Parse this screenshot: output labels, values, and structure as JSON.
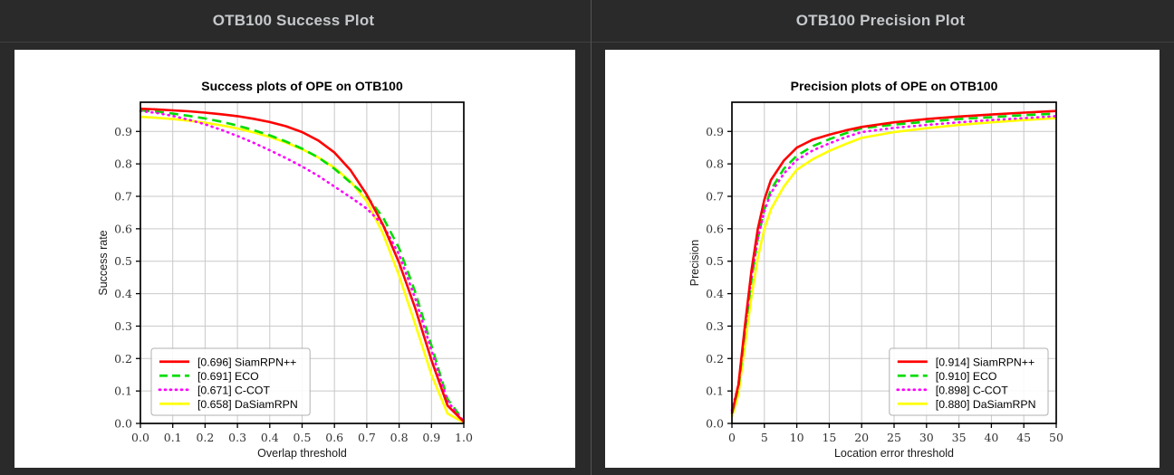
{
  "page": {
    "background": "#2a2a2a",
    "panel_background": "#ffffff",
    "divider_color": "#4a4a4a",
    "header_text_color": "#c6c9cc"
  },
  "headers": {
    "left": "OTB100 Success Plot",
    "right": "OTB100 Precision Plot"
  },
  "chart_data": [
    {
      "type": "line",
      "title": "Success plots of OPE on OTB100",
      "xlabel": "Overlap threshold",
      "ylabel": "Success rate",
      "xlim": [
        0,
        1
      ],
      "ylim": [
        0,
        0.99
      ],
      "grid": true,
      "legend_position": "lower-left",
      "xticks": [
        0,
        0.1,
        0.2,
        0.3,
        0.4,
        0.5,
        0.6,
        0.7,
        0.8,
        0.9,
        1.0
      ],
      "xtick_labels": [
        "0.0",
        "0.1",
        "0.2",
        "0.3",
        "0.4",
        "0.5",
        "0.6",
        "0.7",
        "0.8",
        "0.9",
        "1.0"
      ],
      "yticks": [
        0,
        0.1,
        0.2,
        0.3,
        0.4,
        0.5,
        0.6,
        0.7,
        0.8,
        0.9
      ],
      "ytick_labels": [
        "0.0",
        "0.1",
        "0.2",
        "0.3",
        "0.4",
        "0.5",
        "0.6",
        "0.7",
        "0.8",
        "0.9"
      ],
      "x": [
        0,
        0.05,
        0.1,
        0.15,
        0.2,
        0.25,
        0.3,
        0.35,
        0.4,
        0.45,
        0.5,
        0.55,
        0.6,
        0.65,
        0.7,
        0.75,
        0.8,
        0.85,
        0.9,
        0.95,
        1.0
      ],
      "series": [
        {
          "name": "SiamRPN++",
          "score": 0.696,
          "label": "[0.696] SiamRPN++",
          "color": "#ff0000",
          "dash": "solid",
          "values": [
            0.97,
            0.968,
            0.965,
            0.962,
            0.958,
            0.953,
            0.947,
            0.939,
            0.929,
            0.916,
            0.898,
            0.872,
            0.835,
            0.78,
            0.705,
            0.612,
            0.495,
            0.355,
            0.195,
            0.055,
            0.005
          ]
        },
        {
          "name": "ECO",
          "score": 0.691,
          "label": "[0.691] ECO",
          "color": "#00dd00",
          "dash": "dashed",
          "values": [
            0.965,
            0.961,
            0.955,
            0.948,
            0.94,
            0.93,
            0.918,
            0.904,
            0.888,
            0.869,
            0.847,
            0.82,
            0.785,
            0.742,
            0.7,
            0.635,
            0.54,
            0.405,
            0.24,
            0.075,
            0.008
          ]
        },
        {
          "name": "C-COT",
          "score": 0.671,
          "label": "[0.671] C-COT",
          "color": "#ff00ff",
          "dash": "dotted",
          "values": [
            0.963,
            0.957,
            0.948,
            0.936,
            0.922,
            0.905,
            0.886,
            0.865,
            0.842,
            0.818,
            0.792,
            0.763,
            0.73,
            0.697,
            0.662,
            0.612,
            0.52,
            0.385,
            0.225,
            0.068,
            0.006
          ]
        },
        {
          "name": "DaSiamRPN",
          "score": 0.658,
          "label": "[0.658] DaSiamRPN",
          "color": "#ffff00",
          "dash": "solid",
          "values": [
            0.945,
            0.942,
            0.938,
            0.933,
            0.927,
            0.919,
            0.909,
            0.897,
            0.883,
            0.866,
            0.845,
            0.82,
            0.788,
            0.745,
            0.685,
            0.585,
            0.455,
            0.305,
            0.15,
            0.03,
            0.003
          ]
        }
      ]
    },
    {
      "type": "line",
      "title": "Precision plots of OPE on OTB100",
      "xlabel": "Location error threshold",
      "ylabel": "Precision",
      "xlim": [
        0,
        50
      ],
      "ylim": [
        0,
        0.99
      ],
      "grid": true,
      "legend_position": "lower-right",
      "xticks": [
        0,
        5,
        10,
        15,
        20,
        25,
        30,
        35,
        40,
        45,
        50
      ],
      "xtick_labels": [
        "0",
        "5",
        "10",
        "15",
        "20",
        "25",
        "30",
        "35",
        "40",
        "45",
        "50"
      ],
      "yticks": [
        0,
        0.1,
        0.2,
        0.3,
        0.4,
        0.5,
        0.6,
        0.7,
        0.8,
        0.9
      ],
      "ytick_labels": [
        "0.0",
        "0.1",
        "0.2",
        "0.3",
        "0.4",
        "0.5",
        "0.6",
        "0.7",
        "0.8",
        "0.9"
      ],
      "x": [
        0,
        1,
        2,
        3,
        4,
        5,
        6,
        8,
        10,
        12.5,
        15,
        17.5,
        20,
        25,
        30,
        35,
        40,
        45,
        50
      ],
      "series": [
        {
          "name": "SiamRPN++",
          "score": 0.914,
          "label": "[0.914] SiamRPN++",
          "color": "#ff0000",
          "dash": "solid",
          "values": [
            0.03,
            0.12,
            0.3,
            0.47,
            0.6,
            0.69,
            0.75,
            0.81,
            0.85,
            0.875,
            0.89,
            0.903,
            0.914,
            0.928,
            0.938,
            0.946,
            0.952,
            0.958,
            0.963
          ]
        },
        {
          "name": "ECO",
          "score": 0.91,
          "label": "[0.910] ECO",
          "color": "#00dd00",
          "dash": "dashed",
          "values": [
            0.03,
            0.11,
            0.28,
            0.44,
            0.57,
            0.66,
            0.72,
            0.785,
            0.825,
            0.855,
            0.876,
            0.894,
            0.91,
            0.921,
            0.93,
            0.938,
            0.944,
            0.95,
            0.955
          ]
        },
        {
          "name": "C-COT",
          "score": 0.898,
          "label": "[0.898] C-COT",
          "color": "#ff00ff",
          "dash": "dotted",
          "values": [
            0.04,
            0.12,
            0.29,
            0.45,
            0.57,
            0.655,
            0.71,
            0.77,
            0.812,
            0.842,
            0.863,
            0.882,
            0.898,
            0.911,
            0.92,
            0.928,
            0.935,
            0.941,
            0.947
          ]
        },
        {
          "name": "DaSiamRPN",
          "score": 0.88,
          "label": "[0.880] DaSiamRPN",
          "color": "#ffff00",
          "dash": "solid",
          "values": [
            0.02,
            0.09,
            0.24,
            0.39,
            0.51,
            0.6,
            0.66,
            0.73,
            0.782,
            0.815,
            0.84,
            0.861,
            0.88,
            0.898,
            0.91,
            0.92,
            0.928,
            0.935,
            0.941
          ]
        }
      ]
    }
  ]
}
